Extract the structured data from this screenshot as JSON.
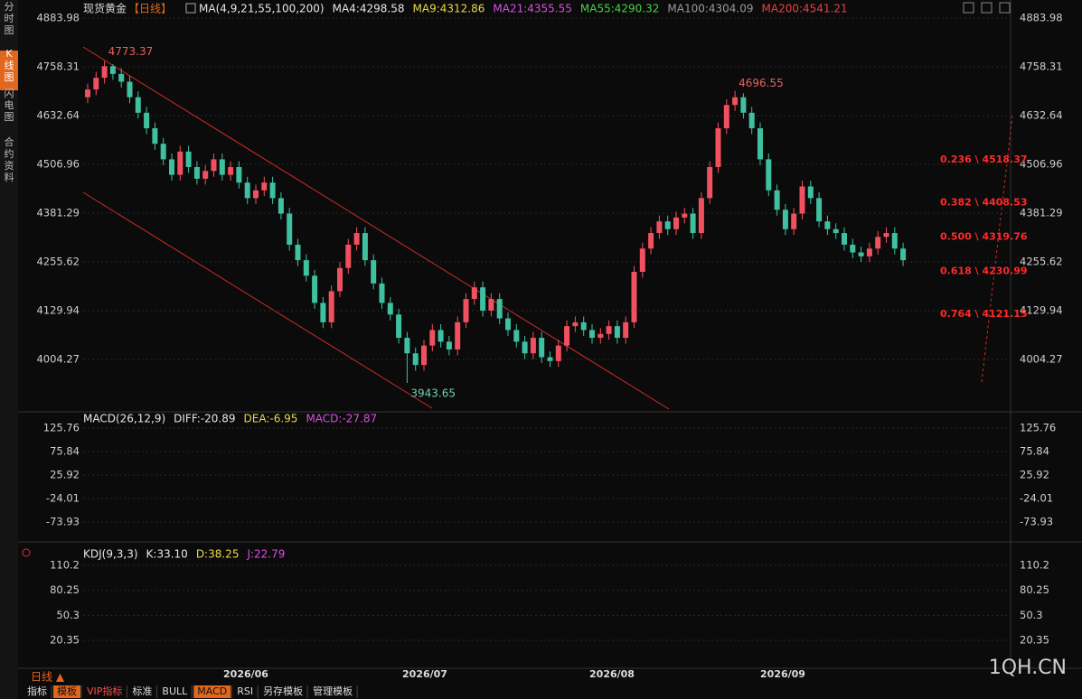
{
  "sidebar": [
    "分时图",
    "K线图",
    "闪电图",
    "合约资料"
  ],
  "chart_data": {
    "type": "candlestick",
    "title": "现货黄金",
    "period": "【日线】",
    "legend": [
      {
        "label": "MA(4,9,21,55,100,200)",
        "color": "#e6e6e6"
      },
      {
        "label": "MA4:4298.58",
        "color": "#e6e6e6"
      },
      {
        "label": "MA9:4312.86",
        "color": "#e8d94a"
      },
      {
        "label": "MA21:4355.55",
        "color": "#d84fe0"
      },
      {
        "label": "MA55:4290.32",
        "color": "#47d14a"
      },
      {
        "label": "MA100:4304.09",
        "color": "#9a9a9a"
      },
      {
        "label": "MA200:4541.21",
        "color": "#e8423f"
      }
    ],
    "up_color": "#f0505f",
    "down_color": "#3fc0a0",
    "open": [
      4680,
      4700,
      4730,
      4760,
      4740,
      4720,
      4680,
      4640,
      4600,
      4560,
      4520,
      4480,
      4540,
      4500,
      4470,
      4490,
      4520,
      4480,
      4500,
      4460,
      4420,
      4440,
      4460,
      4420,
      4380,
      4300,
      4260,
      4220,
      4150,
      4100,
      4180,
      4240,
      4300,
      4330,
      4260,
      4200,
      4150,
      4120,
      4060,
      4020,
      3990,
      4040,
      4080,
      4050,
      4030,
      4100,
      4160,
      4190,
      4130,
      4160,
      4110,
      4080,
      4050,
      4020,
      4060,
      4010,
      4000,
      4040,
      4090,
      4100,
      4080,
      4060,
      4070,
      4090,
      4060,
      4100,
      4230,
      4290,
      4330,
      4360,
      4340,
      4370,
      4380,
      4330,
      4420,
      4500,
      4600,
      4660,
      4680,
      4640,
      4600,
      4520,
      4440,
      4390,
      4340,
      4380,
      4450,
      4420,
      4360,
      4340,
      4330,
      4300,
      4280,
      4270,
      4290,
      4320,
      4330,
      4290
    ],
    "high": [
      4715,
      4745,
      4773.37,
      4765,
      4755,
      4735,
      4695,
      4655,
      4615,
      4575,
      4535,
      4555,
      4555,
      4515,
      4505,
      4535,
      4535,
      4515,
      4515,
      4475,
      4455,
      4475,
      4475,
      4435,
      4395,
      4315,
      4275,
      4235,
      4165,
      4195,
      4255,
      4315,
      4345,
      4345,
      4275,
      4215,
      4165,
      4135,
      4075,
      4035,
      4055,
      4095,
      4095,
      4065,
      4115,
      4175,
      4205,
      4205,
      4175,
      4175,
      4125,
      4095,
      4065,
      4075,
      4075,
      4025,
      4055,
      4105,
      4115,
      4115,
      4095,
      4085,
      4105,
      4105,
      4115,
      4245,
      4305,
      4345,
      4375,
      4375,
      4385,
      4395,
      4395,
      4435,
      4515,
      4615,
      4675,
      4696.55,
      4690,
      4655,
      4615,
      4535,
      4455,
      4405,
      4395,
      4465,
      4465,
      4435,
      4375,
      4355,
      4345,
      4315,
      4295,
      4305,
      4335,
      4345,
      4345,
      4305
    ],
    "low": [
      4665,
      4685,
      4715,
      4725,
      4705,
      4665,
      4625,
      4585,
      4545,
      4505,
      4465,
      4465,
      4485,
      4455,
      4455,
      4475,
      4465,
      4465,
      4445,
      4405,
      4405,
      4425,
      4405,
      4365,
      4285,
      4245,
      4205,
      4135,
      4085,
      4085,
      4165,
      4225,
      4285,
      4245,
      4185,
      4135,
      4105,
      4045,
      3943.65,
      3975,
      3975,
      4025,
      4035,
      4015,
      4015,
      4085,
      4145,
      4115,
      4115,
      4095,
      4065,
      4035,
      4005,
      4005,
      3995,
      3985,
      3985,
      4025,
      4075,
      4065,
      4045,
      4045,
      4055,
      4045,
      4045,
      4085,
      4215,
      4275,
      4315,
      4325,
      4325,
      4355,
      4315,
      4315,
      4405,
      4485,
      4585,
      4645,
      4625,
      4585,
      4505,
      4425,
      4375,
      4325,
      4325,
      4365,
      4405,
      4345,
      4325,
      4315,
      4285,
      4265,
      4255,
      4255,
      4275,
      4305,
      4275,
      4245
    ],
    "close": [
      4700,
      4730,
      4760,
      4740,
      4720,
      4680,
      4640,
      4600,
      4560,
      4520,
      4480,
      4540,
      4500,
      4470,
      4490,
      4520,
      4480,
      4500,
      4460,
      4420,
      4440,
      4460,
      4420,
      4380,
      4300,
      4260,
      4220,
      4150,
      4100,
      4180,
      4240,
      4300,
      4330,
      4260,
      4200,
      4150,
      4120,
      4060,
      4020,
      3990,
      4040,
      4080,
      4050,
      4030,
      4100,
      4160,
      4190,
      4130,
      4160,
      4110,
      4080,
      4050,
      4020,
      4060,
      4010,
      4000,
      4040,
      4090,
      4100,
      4080,
      4060,
      4070,
      4090,
      4060,
      4100,
      4230,
      4290,
      4330,
      4360,
      4340,
      4370,
      4380,
      4330,
      4420,
      4500,
      4600,
      4660,
      4680,
      4640,
      4600,
      4520,
      4440,
      4390,
      4340,
      4380,
      4450,
      4420,
      4360,
      4340,
      4330,
      4300,
      4280,
      4270,
      4290,
      4320,
      4330,
      4290,
      4260
    ],
    "ylim": [
      3871.6,
      4907.3
    ],
    "yticks": [
      4883.98,
      4758.31,
      4632.64,
      4506.96,
      4381.29,
      4255.62,
      4129.94,
      4004.27
    ],
    "fib_labels": [
      {
        "label": "0.236 \\ 4518.37",
        "value": 4518.37
      },
      {
        "label": "0.382 \\ 4408.53",
        "value": 4408.53
      },
      {
        "label": "0.500 \\ 4319.76",
        "value": 4319.76
      },
      {
        "label": "0.618 \\ 4230.99",
        "value": 4230.99
      },
      {
        "label": "0.764 \\ 4121.15",
        "value": 4121.15
      }
    ],
    "fib_color": "#ff2a2a",
    "x_labels": [
      "2026/06",
      "2026/07",
      "2026/08",
      "2026/09"
    ]
  },
  "macd": {
    "legend": [
      {
        "label": "MACD(26,12,9)",
        "color": "#e6e6e6"
      },
      {
        "label": "DIFF:-20.89",
        "color": "#e6e6e6"
      },
      {
        "label": "DEA:-6.95",
        "color": "#e8d94a"
      },
      {
        "label": "MACD:-27.87",
        "color": "#d84fe0"
      }
    ],
    "ylim": [
      -112.3,
      148.8
    ],
    "yticks": [
      125.76,
      75.84,
      25.92,
      -24.01,
      -73.93
    ]
  },
  "kdj": {
    "legend": [
      {
        "label": "KDJ(9,3,3)",
        "color": "#e6e6e6"
      },
      {
        "label": "K:33.10",
        "color": "#e6e6e6"
      },
      {
        "label": "D:38.25",
        "color": "#e8d94a"
      },
      {
        "label": "J:22.79",
        "color": "#d84fe0"
      }
    ],
    "ylim": [
      -13.2,
      125.4
    ],
    "yticks": [
      110.2,
      80.25,
      50.3,
      20.35
    ]
  },
  "period_button": "日线 ▲",
  "toolbar": [
    "指标",
    "模板",
    "VIP指标",
    "标准",
    "BULL",
    "MACD",
    "RSI",
    "另存模板",
    "管理模板"
  ],
  "watermark": "1QH.CN"
}
